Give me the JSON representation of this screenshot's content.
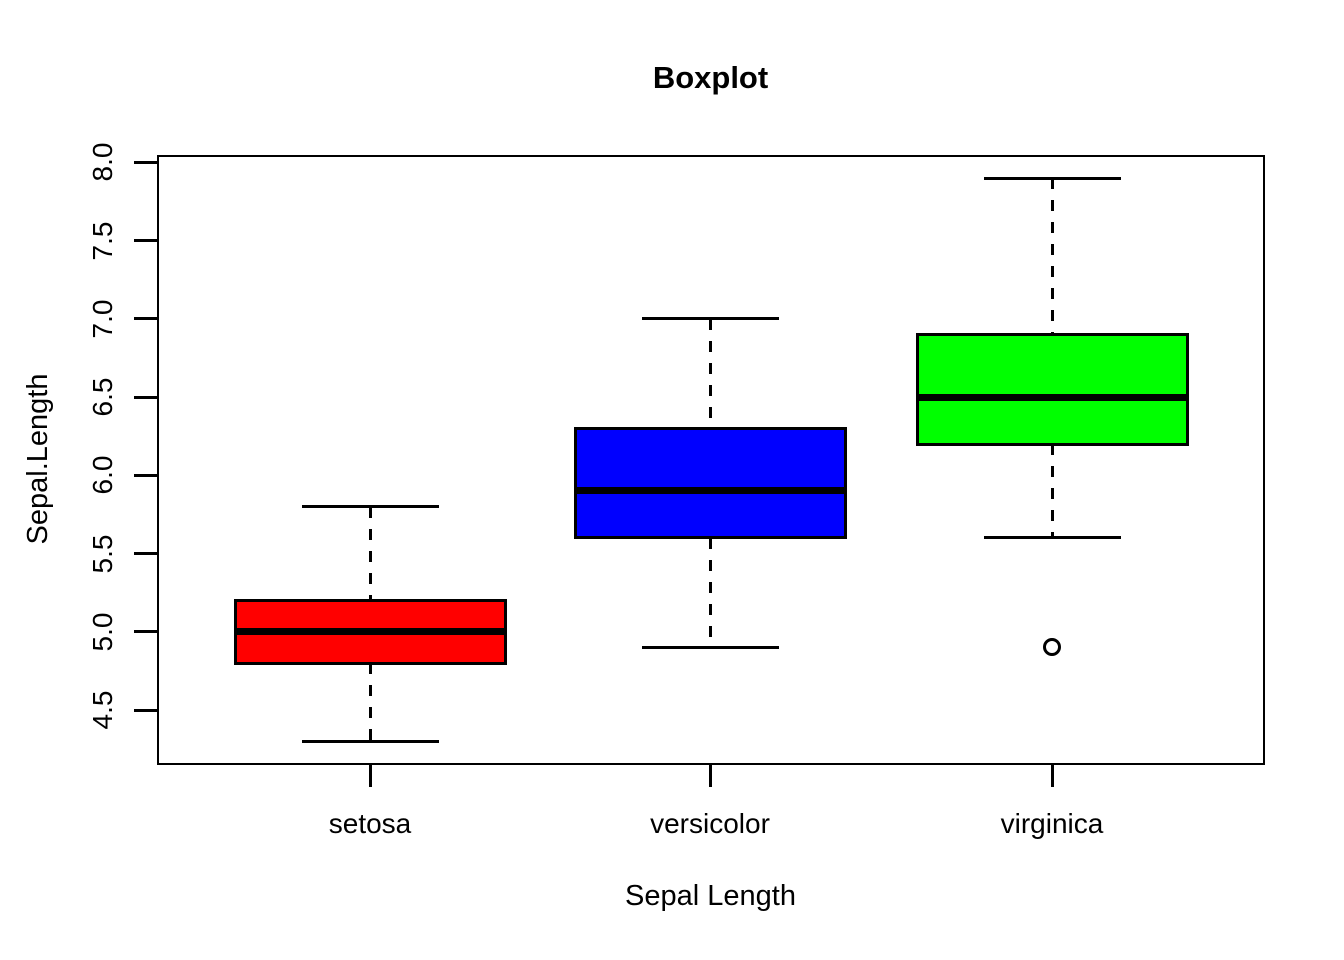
{
  "figure": {
    "title": "Boxplot",
    "x_axis_label": "Sepal Length",
    "y_axis_label": "Sepal.Length"
  },
  "chart_data": {
    "type": "boxplot",
    "title": "Boxplot",
    "xlabel": "Sepal Length",
    "ylabel": "Sepal.Length",
    "categories": [
      "setosa",
      "versicolor",
      "virginica"
    ],
    "y_ticks": [
      4.5,
      5.0,
      5.5,
      6.0,
      6.5,
      7.0,
      7.5,
      8.0
    ],
    "ylim": [
      4.16,
      8.04
    ],
    "grid": false,
    "legend": "none",
    "series": [
      {
        "name": "setosa",
        "color": "#FF0000",
        "whisker_low": 4.3,
        "q1": 4.8,
        "median": 5.0,
        "q3": 5.2,
        "whisker_high": 5.8,
        "outliers": []
      },
      {
        "name": "versicolor",
        "color": "#0000FF",
        "whisker_low": 4.9,
        "q1": 5.6,
        "median": 5.9,
        "q3": 6.3,
        "whisker_high": 7.0,
        "outliers": []
      },
      {
        "name": "virginica",
        "color": "#00FF00",
        "whisker_low": 5.6,
        "q1": 6.2,
        "median": 6.5,
        "q3": 6.9,
        "whisker_high": 7.9,
        "outliers": [
          4.9
        ]
      }
    ]
  }
}
